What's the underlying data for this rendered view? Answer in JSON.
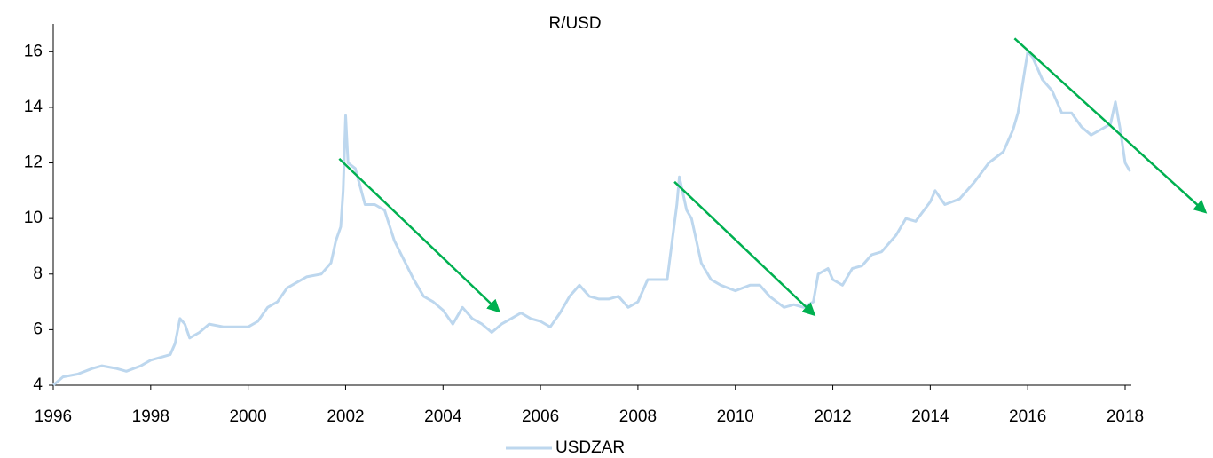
{
  "chart_data": {
    "type": "line",
    "title": "R/USD",
    "xlim": [
      1996,
      2018
    ],
    "xticks": [
      1996,
      1998,
      2000,
      2002,
      2004,
      2006,
      2008,
      2010,
      2012,
      2014,
      2016,
      2018
    ],
    "ylim": [
      4,
      17
    ],
    "yticks": [
      4,
      6,
      8,
      10,
      12,
      14,
      16
    ],
    "legend": "bottom",
    "series": [
      {
        "name": "USDZAR",
        "color": "#bdd7ee",
        "x": [
          1996.0,
          1996.2,
          1996.5,
          1996.8,
          1997.0,
          1997.3,
          1997.5,
          1997.8,
          1998.0,
          1998.2,
          1998.4,
          1998.5,
          1998.6,
          1998.7,
          1998.8,
          1999.0,
          1999.2,
          1999.5,
          1999.8,
          2000.0,
          2000.2,
          2000.4,
          2000.6,
          2000.8,
          2001.0,
          2001.2,
          2001.5,
          2001.7,
          2001.8,
          2001.9,
          2001.95,
          2002.0,
          2002.05,
          2002.2,
          2002.4,
          2002.6,
          2002.8,
          2003.0,
          2003.2,
          2003.4,
          2003.6,
          2003.8,
          2004.0,
          2004.2,
          2004.4,
          2004.6,
          2004.8,
          2005.0,
          2005.2,
          2005.4,
          2005.6,
          2005.8,
          2006.0,
          2006.2,
          2006.4,
          2006.6,
          2006.8,
          2007.0,
          2007.2,
          2007.4,
          2007.6,
          2007.8,
          2008.0,
          2008.2,
          2008.4,
          2008.6,
          2008.8,
          2008.85,
          2009.0,
          2009.1,
          2009.3,
          2009.5,
          2009.7,
          2010.0,
          2010.3,
          2010.5,
          2010.7,
          2011.0,
          2011.2,
          2011.4,
          2011.6,
          2011.7,
          2011.9,
          2012.0,
          2012.2,
          2012.4,
          2012.6,
          2012.8,
          2013.0,
          2013.3,
          2013.5,
          2013.7,
          2014.0,
          2014.1,
          2014.3,
          2014.6,
          2014.9,
          2015.2,
          2015.5,
          2015.7,
          2015.8,
          2016.0,
          2016.1,
          2016.3,
          2016.5,
          2016.7,
          2016.9,
          2017.1,
          2017.3,
          2017.5,
          2017.7,
          2017.8,
          2017.9,
          2018.0,
          2018.1
        ],
        "values": [
          4.0,
          4.3,
          4.4,
          4.6,
          4.7,
          4.6,
          4.5,
          4.7,
          4.9,
          5.0,
          5.1,
          5.5,
          6.4,
          6.2,
          5.7,
          5.9,
          6.2,
          6.1,
          6.1,
          6.1,
          6.3,
          6.8,
          7.0,
          7.5,
          7.7,
          7.9,
          8.0,
          8.4,
          9.2,
          9.7,
          11.0,
          13.7,
          12.0,
          11.8,
          10.5,
          10.5,
          10.3,
          9.2,
          8.5,
          7.8,
          7.2,
          7.0,
          6.7,
          6.2,
          6.8,
          6.4,
          6.2,
          5.9,
          6.2,
          6.4,
          6.6,
          6.4,
          6.3,
          6.1,
          6.6,
          7.2,
          7.6,
          7.2,
          7.1,
          7.1,
          7.2,
          6.8,
          7.0,
          7.8,
          7.8,
          7.8,
          10.5,
          11.5,
          10.3,
          10.0,
          8.4,
          7.8,
          7.6,
          7.4,
          7.6,
          7.6,
          7.2,
          6.8,
          6.9,
          6.8,
          7.0,
          8.0,
          8.2,
          7.8,
          7.6,
          8.2,
          8.3,
          8.7,
          8.8,
          9.4,
          10.0,
          9.9,
          10.6,
          11.0,
          10.5,
          10.7,
          11.3,
          12.0,
          12.4,
          13.2,
          13.8,
          16.0,
          15.8,
          15.0,
          14.6,
          13.8,
          13.8,
          13.3,
          13.0,
          13.2,
          13.4,
          14.2,
          13.2,
          12.0,
          11.7
        ]
      }
    ],
    "arrows": {
      "color": "#00b050",
      "items": [
        {
          "x": [
            2001.87,
            2005.14
          ],
          "y": [
            12.15,
            6.67
          ]
        },
        {
          "x": [
            2008.75,
            2011.61
          ],
          "y": [
            11.32,
            6.55
          ]
        },
        {
          "x": [
            2015.73,
            2019.64
          ],
          "y": [
            16.48,
            10.24
          ]
        }
      ]
    }
  }
}
